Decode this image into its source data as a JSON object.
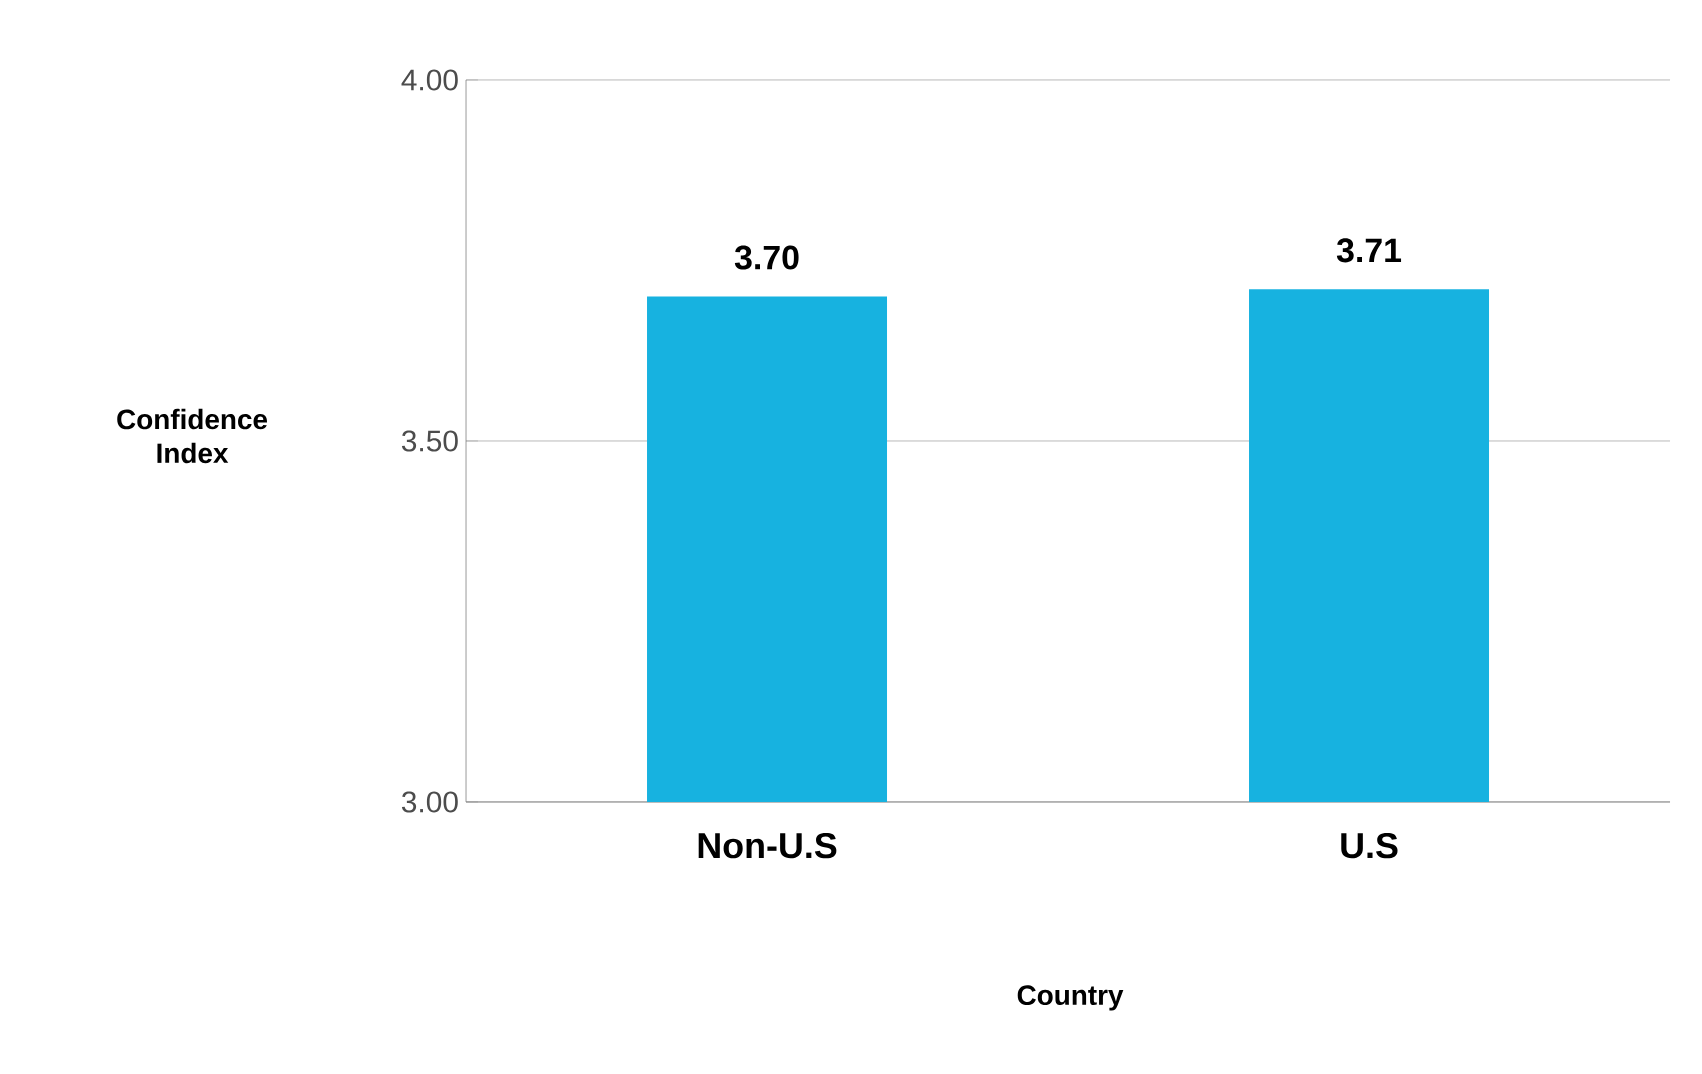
{
  "chart_data": {
    "type": "bar",
    "categories": [
      "Non-U.S",
      "U.S"
    ],
    "values": [
      3.7,
      3.71
    ],
    "color": "#17b2e0",
    "ylim": [
      3.0,
      4.0
    ],
    "yticks": [
      {
        "value": 3.0,
        "label": "3.00"
      },
      {
        "value": 3.5,
        "label": "3.50"
      },
      {
        "value": 4.0,
        "label": "4.00"
      }
    ],
    "ylabel": "Confidence Index",
    "xlabel": "Country",
    "grid": "y",
    "value_labels": [
      "3.70",
      "3.71"
    ]
  }
}
